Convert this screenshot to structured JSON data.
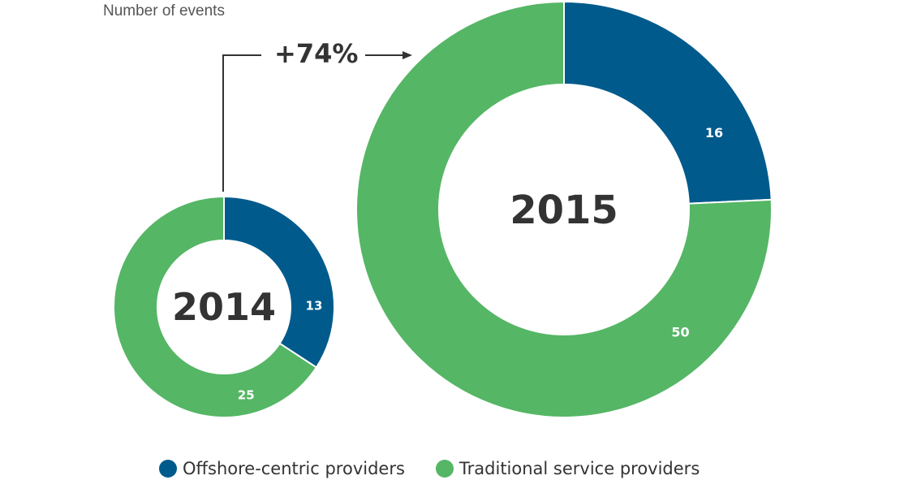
{
  "subtitle": "Number of events",
  "chart_data": [
    {
      "type": "pie",
      "donut": true,
      "center_label": "2014",
      "slices": [
        {
          "name": "Offshore-centric providers",
          "value": 13,
          "label": "13"
        },
        {
          "name": "Traditional service providers",
          "value": 25,
          "label": "25"
        }
      ]
    },
    {
      "type": "pie",
      "donut": true,
      "center_label": "2015",
      "slices": [
        {
          "name": "Offshore-centric providers",
          "value": 16,
          "label": "16"
        },
        {
          "name": "Traditional service providers",
          "value": 50,
          "label": "50"
        }
      ]
    }
  ],
  "annotation": {
    "growth": "+74%"
  },
  "legend": [
    {
      "name": "Offshore-centric providers",
      "color": "#005A8C"
    },
    {
      "name": "Traditional service providers",
      "color": "#55B665"
    }
  ],
  "colors": {
    "offshore": "#005A8C",
    "traditional": "#55B665",
    "text": "#333333",
    "subtitle": "#555555"
  }
}
